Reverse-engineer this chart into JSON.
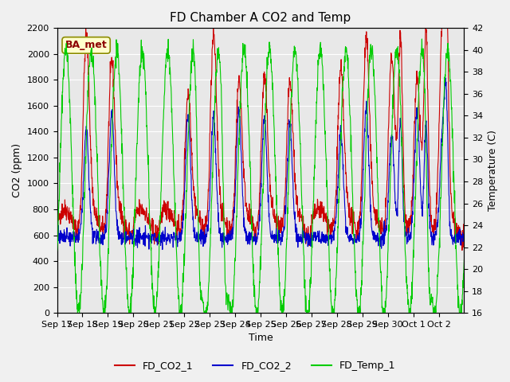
{
  "title": "FD Chamber A CO2 and Temp",
  "ylabel_left": "CO2 (ppm)",
  "ylabel_right": "Temperature (C)",
  "xlabel": "Time",
  "annotation": "BA_met",
  "ylim_left": [
    0,
    2200
  ],
  "ylim_right": [
    16,
    42
  ],
  "yticks_left": [
    0,
    200,
    400,
    600,
    800,
    1000,
    1200,
    1400,
    1600,
    1800,
    2000,
    2200
  ],
  "yticks_right": [
    16,
    18,
    20,
    22,
    24,
    26,
    28,
    30,
    32,
    34,
    36,
    38,
    40,
    42
  ],
  "xtick_labels": [
    "Sep 17",
    "Sep 18",
    "Sep 19",
    "Sep 20",
    "Sep 21",
    "Sep 22",
    "Sep 23",
    "Sep 24",
    "Sep 25",
    "Sep 26",
    "Sep 27",
    "Sep 28",
    "Sep 29",
    "Sep 30",
    "Oct 1",
    "Oct 2"
  ],
  "color_co2_1": "#cc0000",
  "color_co2_2": "#0000cc",
  "color_temp": "#00cc00",
  "legend_labels": [
    "FD_CO2_1",
    "FD_CO2_2",
    "FD_Temp_1"
  ],
  "plot_bg_color": "#e8e8e8",
  "fig_bg_color": "#f0f0f0"
}
